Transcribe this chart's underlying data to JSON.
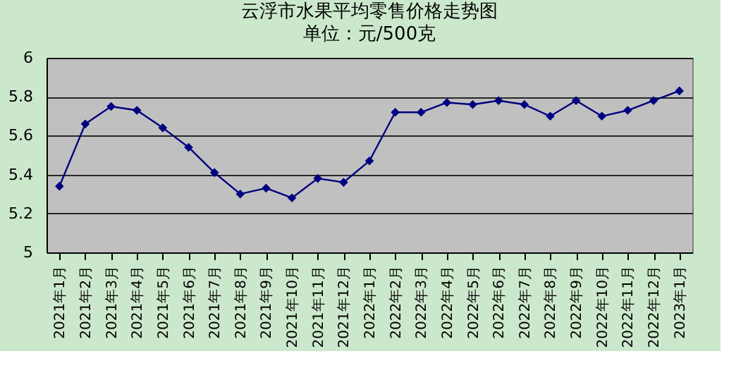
{
  "chart_data": {
    "type": "line",
    "title": "云浮市水果平均零售价格走势图",
    "subtitle": "单位：元/500克",
    "categories": [
      "2021年1月",
      "2021年2月",
      "2021年3月",
      "2021年4月",
      "2021年5月",
      "2021年6月",
      "2021年7月",
      "2021年8月",
      "2021年9月",
      "2021年10月",
      "2021年11月",
      "2021年12月",
      "2022年1月",
      "2022年2月",
      "2022年3月",
      "2022年4月",
      "2022年5月",
      "2022年6月",
      "2022年7月",
      "2022年8月",
      "2022年9月",
      "2022年10月",
      "2022年11月",
      "2022年12月",
      "2023年1月"
    ],
    "series": [
      {
        "color": "#000080",
        "values": [
          5.34,
          5.66,
          5.75,
          5.73,
          5.64,
          5.54,
          5.41,
          5.3,
          5.33,
          5.28,
          5.38,
          5.36,
          5.47,
          5.72,
          5.72,
          5.77,
          5.76,
          5.78,
          5.76,
          5.7,
          5.78,
          5.7,
          5.73,
          5.78,
          5.83
        ]
      }
    ],
    "ylim": [
      5,
      6
    ],
    "yticks": [
      5,
      5.2,
      5.4,
      5.6,
      5.8,
      6
    ],
    "grid": "y",
    "legend": false,
    "marker": "diamond",
    "line_style": "solid"
  }
}
